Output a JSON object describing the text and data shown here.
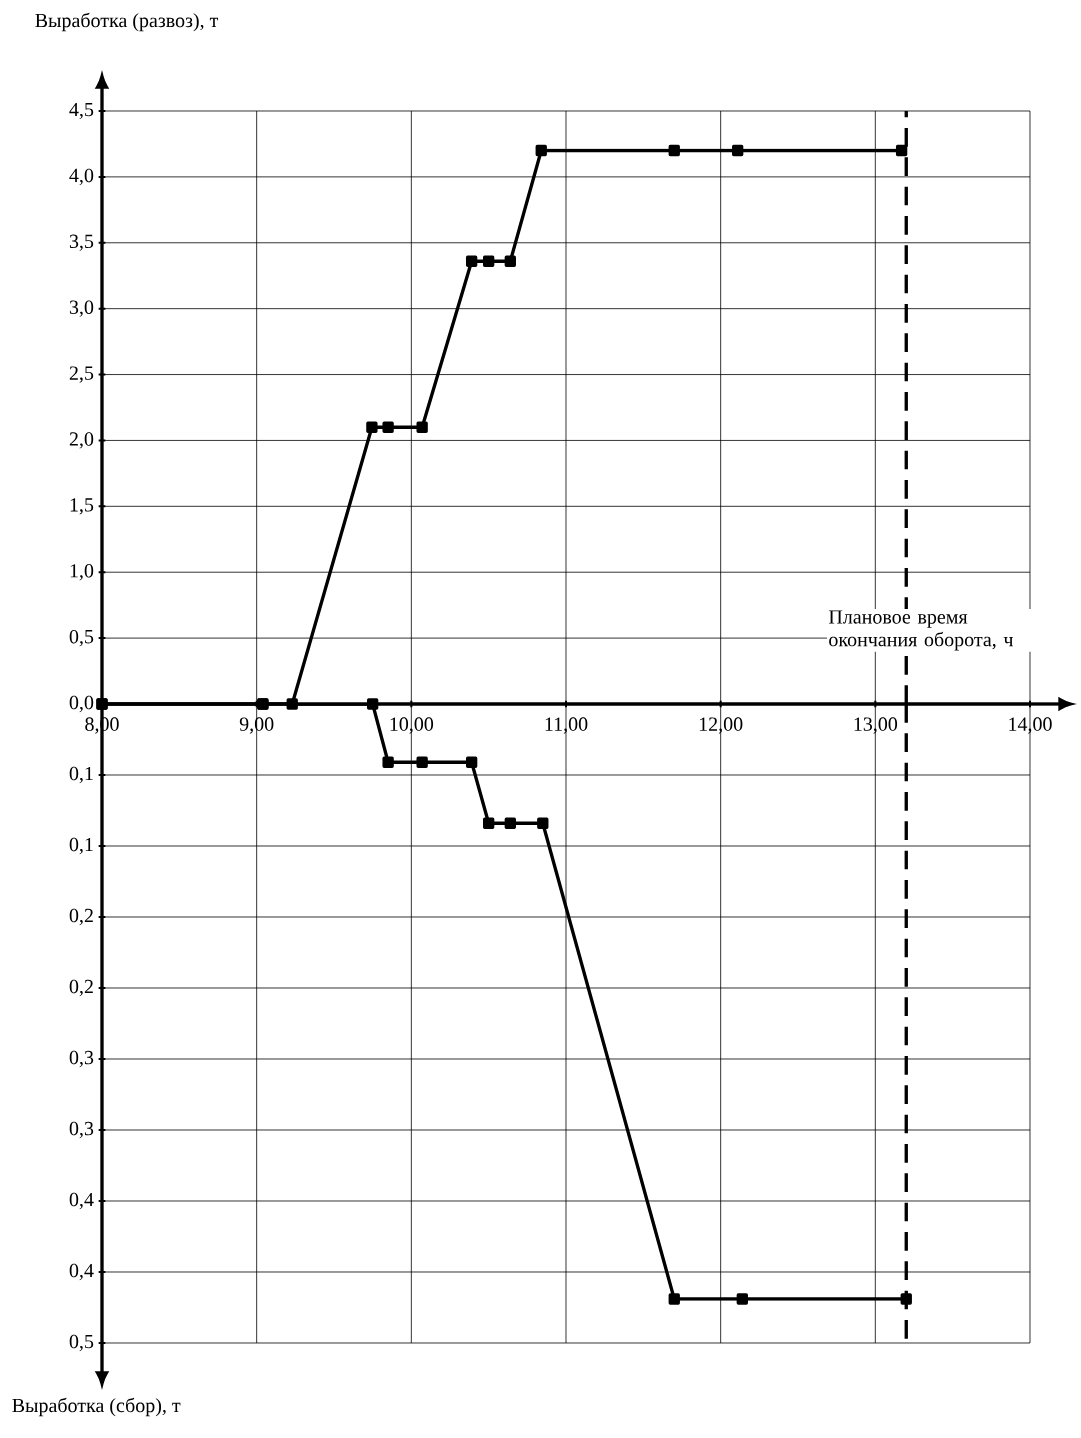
{
  "chart_data": [
    {
      "type": "line",
      "ylabel": "Выработка (развоз), т",
      "xlabel": "Плановое время окончания оборота, ч",
      "x": [
        8.0,
        9.04,
        9.23,
        9.745,
        9.85,
        10.07,
        10.39,
        10.5,
        10.64,
        10.84,
        11.7,
        12.11,
        13.17
      ],
      "series": [
        {
          "color": "#000000",
          "values": [
            0,
            0,
            0,
            2.1,
            2.1,
            2.1,
            3.36,
            3.36,
            3.36,
            4.2,
            4.2,
            4.2,
            4.2
          ]
        }
      ],
      "xlim": [
        8,
        14
      ],
      "ylim": [
        0,
        4.5
      ],
      "xticks": [
        {
          "value": 8,
          "label": "8,00"
        },
        {
          "value": 9,
          "label": "9,00"
        },
        {
          "value": 10,
          "label": "10,00"
        },
        {
          "value": 11,
          "label": "11,00"
        },
        {
          "value": 12,
          "label": "12,00"
        },
        {
          "value": 13,
          "label": "13,00"
        },
        {
          "value": 14,
          "label": "14,00"
        }
      ],
      "yticks": [
        {
          "value": 0,
          "label": "0,0"
        },
        {
          "value": 0.5,
          "label": "0,5"
        },
        {
          "value": 1,
          "label": "1,0"
        },
        {
          "value": 1.5,
          "label": "1,5"
        },
        {
          "value": 2,
          "label": "2,0"
        },
        {
          "value": 2.5,
          "label": "2,5"
        },
        {
          "value": 3,
          "label": "3,0"
        },
        {
          "value": 3.5,
          "label": "3,5"
        },
        {
          "value": 4,
          "label": "4,0"
        },
        {
          "value": 4.5,
          "label": "4,5"
        }
      ],
      "ref_lines": [
        {
          "axis": "x",
          "value": 13.2,
          "line_style": "dashed",
          "color": "#000000"
        }
      ],
      "grid": true,
      "marker": "square",
      "line_style": "solid"
    },
    {
      "type": "line",
      "ylabel": "Выработка (сбор), т",
      "x": [
        8.0,
        9.04,
        9.75,
        9.85,
        10.07,
        10.39,
        10.5,
        10.64,
        10.85,
        11.7,
        12.14,
        13.2
      ],
      "series": [
        {
          "color": "#000000",
          "values": [
            0,
            0,
            0,
            0.041,
            0.041,
            0.041,
            0.084,
            0.084,
            0.084,
            0.419,
            0.419,
            0.419
          ]
        }
      ],
      "xlim": [
        8,
        14
      ],
      "ylim": [
        0.45,
        0
      ],
      "xticks": [
        8,
        9,
        10,
        11,
        12,
        13,
        14
      ],
      "yticks": [
        {
          "value": 0.05,
          "label": "0,1"
        },
        {
          "value": 0.1,
          "label": "0,1"
        },
        {
          "value": 0.15,
          "label": "0,2"
        },
        {
          "value": 0.2,
          "label": "0,2"
        },
        {
          "value": 0.25,
          "label": "0,3"
        },
        {
          "value": 0.3,
          "label": "0,3"
        },
        {
          "value": 0.35,
          "label": "0,4"
        },
        {
          "value": 0.4,
          "label": "0,4"
        },
        {
          "value": 0.45,
          "label": "0,5"
        }
      ],
      "ref_lines": [
        {
          "axis": "x",
          "value": 13.2,
          "line_style": "dashed",
          "color": "#000000"
        }
      ],
      "tick_labels": "y",
      "grid": true,
      "marker": "square",
      "line_style": "solid"
    }
  ]
}
